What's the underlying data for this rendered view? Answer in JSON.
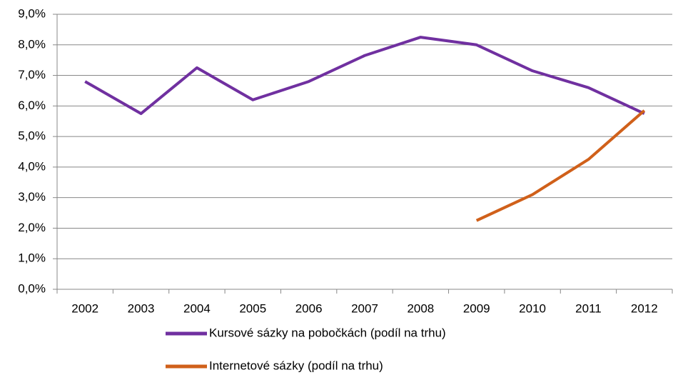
{
  "chart_data": {
    "type": "line",
    "categories": [
      "2002",
      "2003",
      "2004",
      "2005",
      "2006",
      "2007",
      "2008",
      "2009",
      "2010",
      "2011",
      "2012"
    ],
    "series": [
      {
        "name": "Kursové sázky na pobočkách (podíl na trhu)",
        "color": "#7030a0",
        "values": [
          6.8,
          5.75,
          7.25,
          6.2,
          6.8,
          7.65,
          8.25,
          8.0,
          7.15,
          6.6,
          5.75
        ]
      },
      {
        "name": "Internetové sázky (podíl na trhu)",
        "color": "#d0601a",
        "values": [
          null,
          null,
          null,
          null,
          null,
          null,
          null,
          2.25,
          3.1,
          4.25,
          5.85
        ]
      }
    ],
    "ylim": [
      0,
      9
    ],
    "yticks": [
      {
        "value": 0,
        "label": "0,0%"
      },
      {
        "value": 1,
        "label": "1,0%"
      },
      {
        "value": 2,
        "label": "2,0%"
      },
      {
        "value": 3,
        "label": "3,0%"
      },
      {
        "value": 4,
        "label": "4,0%"
      },
      {
        "value": 5,
        "label": "5,0%"
      },
      {
        "value": 6,
        "label": "6,0%"
      },
      {
        "value": 7,
        "label": "7,0%"
      },
      {
        "value": 8,
        "label": "8,0%"
      },
      {
        "value": 9,
        "label": "9,0%"
      }
    ],
    "grid": true,
    "legend": "bottom"
  }
}
